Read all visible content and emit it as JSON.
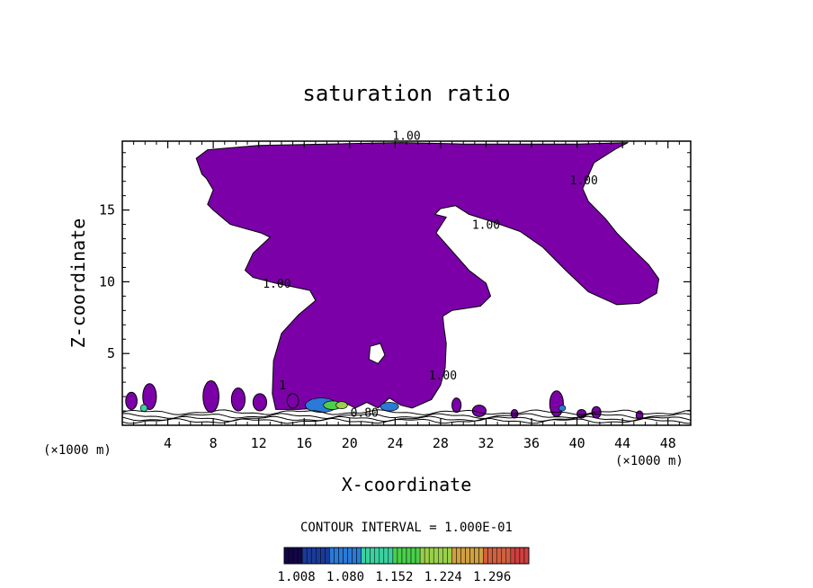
{
  "chart_data": {
    "type": "contour",
    "title": "saturation ratio",
    "xlabel": "X-coordinate",
    "ylabel": "Z-coordinate",
    "x_unit": "(×1000 m)",
    "y_unit": "(×1000 m)",
    "xlim": [
      0,
      50
    ],
    "ylim": [
      0,
      19.8
    ],
    "x_ticks": [
      4,
      8,
      12,
      16,
      20,
      24,
      28,
      32,
      36,
      40,
      44,
      48
    ],
    "y_ticks": [
      5,
      10,
      15
    ],
    "contour_interval_text": "CONTOUR INTERVAL = 1.000E-01",
    "contour_labels": [
      {
        "text": "1.00",
        "x": 25.0,
        "z": 19.9
      },
      {
        "text": "1.00",
        "x": 40.6,
        "z": 16.8
      },
      {
        "text": "1.00",
        "x": 32.0,
        "z": 13.7
      },
      {
        "text": "1.00",
        "x": 13.6,
        "z": 9.6
      },
      {
        "text": "1.00",
        "x": 28.2,
        "z": 3.2
      },
      {
        "text": "1",
        "x": 14.1,
        "z": 2.5
      },
      {
        "text": "0.80",
        "x": 21.3,
        "z": 0.6
      }
    ],
    "colorbar": {
      "colors": [
        "#12054a",
        "#1a3a9a",
        "#2a7ad8",
        "#3ad0a0",
        "#4ad04a",
        "#9ad04a",
        "#d0a040",
        "#d06040",
        "#d04040"
      ],
      "tick_labels": [
        "1.008",
        "1.080",
        "1.152",
        "1.224",
        "1.296"
      ],
      "range": [
        0.99,
        1.35
      ]
    },
    "fill_color": "#7b00a8"
  }
}
